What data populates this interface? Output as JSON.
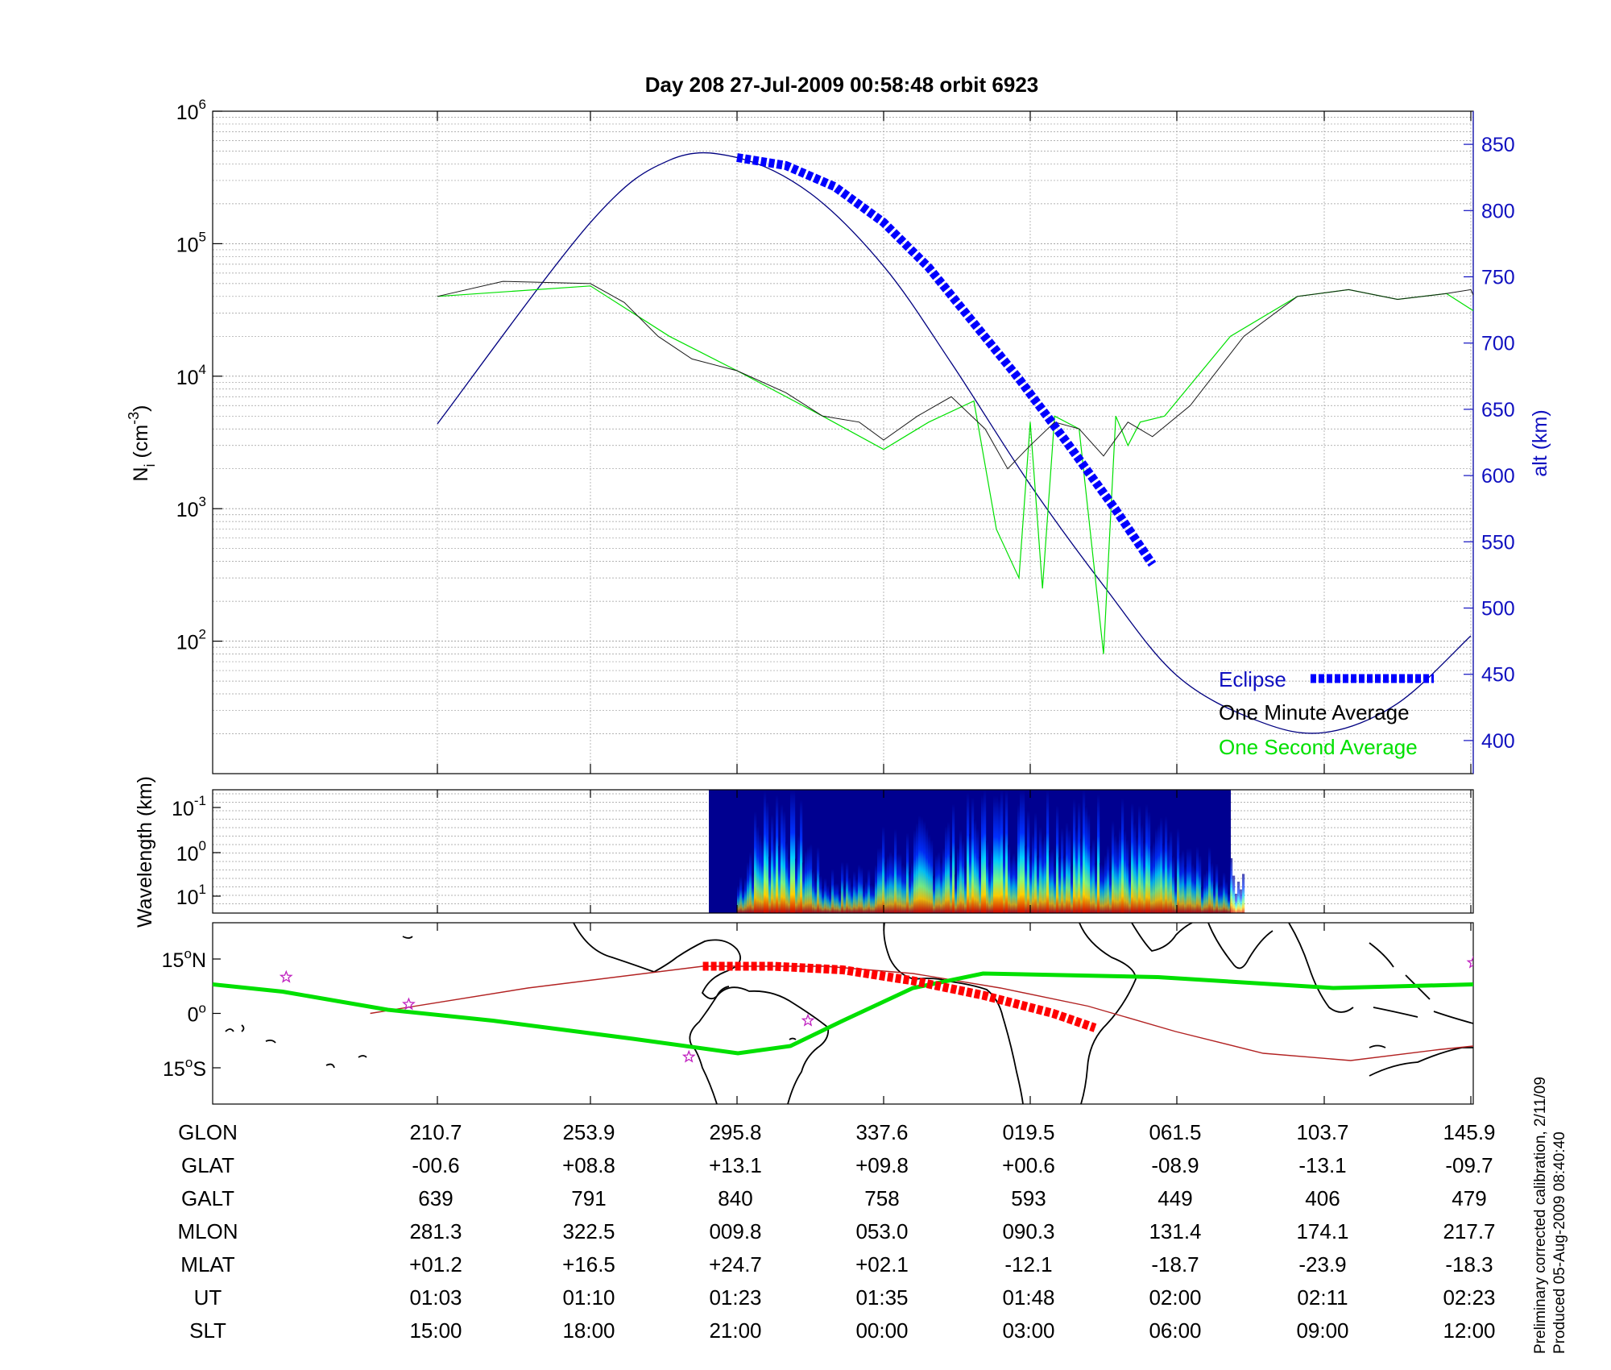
{
  "header": {
    "title": "Day 208  27-Jul-2009 00:58:48    orbit 6923"
  },
  "footer": {
    "line1": "Preliminary corrected calibration, 2/11/09",
    "line2": "Produced 05-Aug-2009 08:40:40"
  },
  "colors": {
    "eclipse": "#0000ff",
    "one_minute": "#000000",
    "one_second": "#00e000",
    "alt": "#000080",
    "axis_right": "#1010c0",
    "trajectory": "#00e000",
    "orbit_track": "#b22222",
    "eclipse_map": "#ff0000",
    "star": "#c020c0"
  },
  "chart_data": [
    {
      "type": "line",
      "panel": "ion density and altitude",
      "ylabel_main": "N",
      "ylabel_sub": "i",
      "ylabel_unit": " (cm",
      "ylabel_exp": "-3",
      "ylabel_close": ")",
      "y_scale": "log",
      "ylim": [
        10,
        1000000
      ],
      "y_ticks": [
        {
          "base": "10",
          "exp": "6",
          "value": 1000000
        },
        {
          "base": "10",
          "exp": "5",
          "value": 100000
        },
        {
          "base": "10",
          "exp": "4",
          "value": 10000
        },
        {
          "base": "10",
          "exp": "3",
          "value": 1000
        },
        {
          "base": "10",
          "exp": "2",
          "value": 100
        }
      ],
      "y2label": "alt (km)",
      "y2lim": [
        375,
        875
      ],
      "y2_ticks": [
        "850",
        "800",
        "750",
        "700",
        "650",
        "600",
        "550",
        "500",
        "450",
        "400"
      ],
      "x_ticks_ut": [
        "01:03",
        "01:10",
        "01:23",
        "01:35",
        "01:48",
        "02:00",
        "02:11",
        "02:23"
      ],
      "grid": true,
      "legend_position": "bottom-right",
      "series": [
        {
          "name": "Eclipse",
          "style": "thick dashed blue",
          "x": [
            "01:23",
            "01:27",
            "01:31",
            "01:35",
            "01:39",
            "01:43",
            "01:47",
            "01:51",
            "01:55",
            "01:58"
          ],
          "values": [
            840,
            834,
            818,
            791,
            757,
            715,
            673,
            625,
            574,
            533
          ]
        },
        {
          "name": "One Minute Average",
          "style": "thin black",
          "x": [
            "01:03",
            "01:06",
            "01:10",
            "01:13",
            "01:16",
            "01:19",
            "01:23",
            "01:27",
            "01:30",
            "01:33",
            "01:35",
            "01:38",
            "01:41",
            "01:44",
            "01:46",
            "01:48",
            "01:50",
            "01:52",
            "01:54",
            "01:56",
            "01:58",
            "02:01",
            "02:05",
            "02:09",
            "02:13",
            "02:17",
            "02:21",
            "02:23",
            "02:24"
          ],
          "values": [
            40000,
            52000,
            50000,
            36000,
            20000,
            13500,
            11000,
            7500,
            5000,
            4500,
            3300,
            5000,
            7000,
            4000,
            2000,
            3000,
            4500,
            4000,
            2500,
            4500,
            3500,
            6000,
            20000,
            40000,
            45000,
            38000,
            42000,
            45000,
            28000
          ]
        },
        {
          "name": "One Second Average",
          "style": "thin green",
          "x": [
            "01:03",
            "01:10",
            "01:17",
            "01:23",
            "01:30",
            "01:35",
            "01:39",
            "01:43",
            "01:45",
            "01:47",
            "01:48",
            "01:49",
            "01:50",
            "01:52",
            "01:54",
            "01:55",
            "01:56",
            "01:57",
            "01:59",
            "02:04",
            "02:09",
            "02:13",
            "02:17",
            "02:21",
            "02:24"
          ],
          "values": [
            40000,
            48000,
            20000,
            11000,
            5000,
            2800,
            4500,
            6500,
            700,
            300,
            4500,
            250,
            5000,
            4000,
            80,
            5000,
            3000,
            4500,
            5000,
            20000,
            40000,
            45000,
            38000,
            42000,
            28000
          ]
        },
        {
          "name": "altitude",
          "axis": "right",
          "style": "thin navy",
          "x": [
            "01:03",
            "01:10",
            "01:17",
            "01:23",
            "01:29",
            "01:35",
            "01:41",
            "01:48",
            "01:54",
            "02:00",
            "02:06",
            "02:11",
            "02:17",
            "02:23"
          ],
          "values": [
            639,
            791,
            838,
            840,
            813,
            758,
            685,
            593,
            517,
            449,
            415,
            406,
            428,
            479
          ]
        }
      ]
    },
    {
      "type": "heatmap",
      "panel": "wavelength spectrogram",
      "ylabel": "Wavelength (km)",
      "y_scale": "log",
      "y_ticks": [
        {
          "base": "10",
          "exp": "-1"
        },
        {
          "base": "10",
          "exp": "0"
        },
        {
          "base": "10",
          "exp": "1"
        }
      ],
      "x_range_ut": [
        "01:23",
        "02:05"
      ],
      "colormap": "jet",
      "intensity_by_ut": [
        {
          "ut": "01:23",
          "level": 0.25
        },
        {
          "ut": "01:25",
          "level": 0.85
        },
        {
          "ut": "01:27",
          "level": 0.95
        },
        {
          "ut": "01:30",
          "level": 0.3
        },
        {
          "ut": "01:33",
          "level": 0.35
        },
        {
          "ut": "01:35",
          "level": 0.55
        },
        {
          "ut": "01:38",
          "level": 0.6
        },
        {
          "ut": "01:42",
          "level": 0.7
        },
        {
          "ut": "01:44",
          "level": 0.85
        },
        {
          "ut": "01:47",
          "level": 0.95
        },
        {
          "ut": "01:49",
          "level": 0.9
        },
        {
          "ut": "01:52",
          "level": 0.8
        },
        {
          "ut": "01:55",
          "level": 0.75
        },
        {
          "ut": "01:58",
          "level": 0.65
        },
        {
          "ut": "02:01",
          "level": 0.45
        },
        {
          "ut": "02:05",
          "level": 0.3
        }
      ]
    },
    {
      "type": "line",
      "panel": "ground track map",
      "y_ticks": [
        {
          "label": "15",
          "deg": "o",
          "hemi": "N",
          "lat": 15
        },
        {
          "label": "0",
          "deg": "o",
          "hemi": "",
          "lat": 0
        },
        {
          "label": "15",
          "deg": "o",
          "hemi": "S",
          "lat": -15
        }
      ],
      "ylim": [
        -25,
        25
      ],
      "series": [
        {
          "name": "magnetic equator",
          "style": "thick green",
          "lon_from_left": [
            0,
            20,
            50,
            80,
            120,
            150,
            165,
            180,
            200,
            220,
            270,
            320,
            360
          ],
          "lat": [
            8,
            6,
            1,
            -2,
            -7,
            -11,
            -9,
            -2,
            7,
            11,
            10,
            7,
            8
          ]
        },
        {
          "name": "orbit track",
          "style": "thin red",
          "lon_from_left": [
            45,
            90,
            140,
            175,
            200,
            225,
            250,
            275,
            300,
            325,
            350,
            360
          ],
          "lat": [
            0,
            7,
            13,
            13,
            11,
            7,
            2,
            -5,
            -11,
            -13,
            -10,
            -9
          ]
        },
        {
          "name": "eclipse segment",
          "style": "thick dashed red",
          "lon_from_left": [
            140,
            160,
            180,
            200,
            220,
            240,
            252
          ],
          "lat": [
            13,
            13,
            12,
            9,
            5,
            0,
            -4
          ]
        }
      ],
      "stars_lon_lat": [
        [
          21,
          10
        ],
        [
          56,
          2.5
        ],
        [
          136,
          -12
        ],
        [
          170,
          -2
        ],
        [
          360,
          14
        ]
      ]
    }
  ],
  "table": {
    "rows": [
      {
        "label": "GLON",
        "values": [
          "210.7",
          "253.9",
          "295.8",
          "337.6",
          "019.5",
          "061.5",
          "103.7",
          "145.9"
        ]
      },
      {
        "label": "GLAT",
        "values": [
          "-00.6",
          "+08.8",
          "+13.1",
          "+09.8",
          "+00.6",
          "-08.9",
          "-13.1",
          "-09.7"
        ]
      },
      {
        "label": "GALT",
        "values": [
          "639",
          "791",
          "840",
          "758",
          "593",
          "449",
          "406",
          "479"
        ]
      },
      {
        "label": "MLON",
        "values": [
          "281.3",
          "322.5",
          "009.8",
          "053.0",
          "090.3",
          "131.4",
          "174.1",
          "217.7"
        ]
      },
      {
        "label": "MLAT",
        "values": [
          "+01.2",
          "+16.5",
          "+24.7",
          "+02.1",
          "-12.1",
          "-18.7",
          "-23.9",
          "-18.3"
        ]
      },
      {
        "label": "UT",
        "values": [
          "01:03",
          "01:10",
          "01:23",
          "01:35",
          "01:48",
          "02:00",
          "02:11",
          "02:23"
        ]
      },
      {
        "label": "SLT",
        "values": [
          "15:00",
          "18:00",
          "21:00",
          "00:00",
          "03:00",
          "06:00",
          "09:00",
          "12:00"
        ]
      }
    ]
  }
}
